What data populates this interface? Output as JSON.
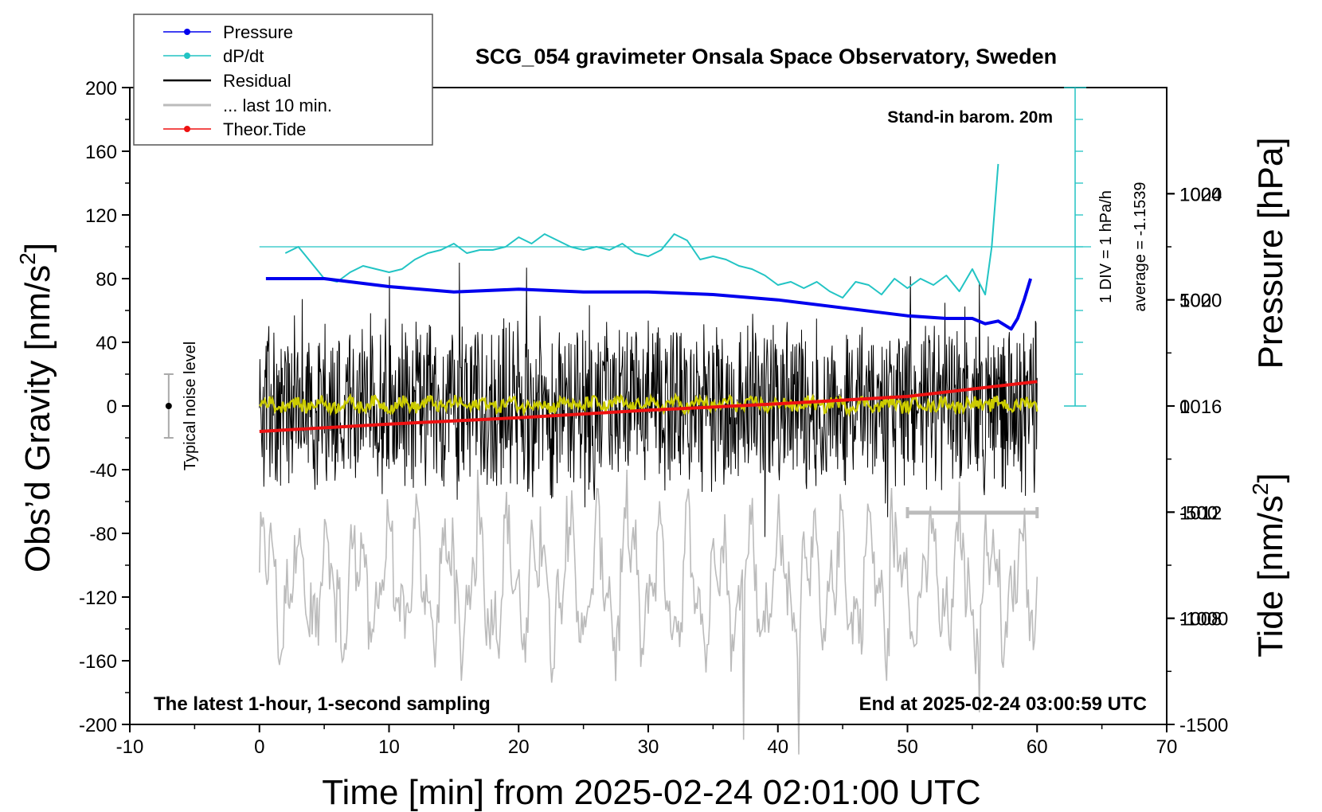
{
  "chart_data": {
    "type": "line",
    "title": "SCG_054 gravimeter Onsala Space Observatory, Sweden",
    "xlabel": "Time [min] from 2025-02-24 02:01:00 UTC",
    "ylabel_left": "Obs’d Gravity [nm/s",
    "ylabel_right_top": "Pressure [hPa]",
    "ylabel_right_bottom": "Tide [nm/s",
    "superscript": "2",
    "closing_bracket": "]",
    "xlim": [
      -10,
      70
    ],
    "ylim_left": [
      -200,
      200
    ],
    "pressure_lim": [
      1004,
      1028
    ],
    "tide_lim": [
      -1500,
      1500
    ],
    "x_ticks": [
      "-10",
      "0",
      "10",
      "20",
      "30",
      "40",
      "50",
      "60",
      "70"
    ],
    "y_ticks_left": [
      "200",
      "160",
      "120",
      "80",
      "40",
      "0",
      "-40",
      "-80",
      "-120",
      "-160",
      "-200"
    ],
    "pressure_ticks": [
      "1024",
      "1020",
      "1016",
      "1012",
      "1008"
    ],
    "tide_ticks": [
      "1000",
      "500",
      "0",
      "-500",
      "-1000",
      "-1500"
    ],
    "legend": [
      "Pressure",
      "dP/dt",
      "Residual",
      "... last 10 min.",
      "Theor.Tide"
    ],
    "annotations": {
      "stand_in": "Stand-in barom. 20m",
      "div": "1 DIV = 1 hPa/h",
      "average": "average = -1.1539",
      "noise": "Typical noise level",
      "bottom_left": "The latest 1-hour, 1-second sampling",
      "bottom_right": "End at 2025-02-24 03:00:59 UTC"
    },
    "colors": {
      "pressure": "#0000ee",
      "dpdt": "#22c4c4",
      "residual": "#000000",
      "last10": "#bbbbbb",
      "tide": "#ee1111",
      "filtered": "#cccc00"
    },
    "series": [
      {
        "name": "Pressure",
        "axis": "pressure_hPa",
        "x": [
          0.5,
          5,
          10,
          15,
          20,
          25,
          30,
          35,
          40,
          45,
          50,
          53,
          55,
          56,
          57,
          58,
          58.5,
          59,
          59.5
        ],
        "values": [
          1020.8,
          1020.8,
          1020.5,
          1020.3,
          1020.4,
          1020.3,
          1020.3,
          1020.2,
          1020.0,
          1019.7,
          1019.4,
          1019.3,
          1019.3,
          1019.1,
          1019.2,
          1018.9,
          1019.3,
          1020.0,
          1020.8
        ]
      },
      {
        "name": "dP/dt",
        "axis": "dpdt_hPa_per_h_offset",
        "x": [
          2,
          3,
          4,
          5,
          6,
          7,
          8,
          9,
          10,
          11,
          12,
          13,
          14,
          15,
          16,
          17,
          18,
          19,
          20,
          21,
          22,
          23,
          24,
          25,
          26,
          27,
          28,
          29,
          30,
          31,
          32,
          33,
          34,
          35,
          36,
          37,
          38,
          39,
          40,
          41,
          42,
          43,
          44,
          45,
          46,
          47,
          48,
          49,
          50,
          51,
          52,
          53,
          54,
          55,
          56,
          56.5,
          57
        ],
        "values": [
          -0.2,
          0.0,
          -0.5,
          -1.0,
          -1.1,
          -0.8,
          -0.6,
          -0.7,
          -0.8,
          -0.7,
          -0.4,
          -0.2,
          -0.1,
          0.1,
          -0.2,
          -0.1,
          -0.1,
          0.0,
          0.3,
          0.1,
          0.4,
          0.2,
          0.0,
          -0.1,
          0.0,
          -0.1,
          0.1,
          -0.2,
          -0.3,
          -0.1,
          0.4,
          0.2,
          -0.4,
          -0.3,
          -0.4,
          -0.6,
          -0.7,
          -0.9,
          -1.2,
          -1.1,
          -1.3,
          -1.1,
          -1.4,
          -1.6,
          -1.1,
          -1.2,
          -1.5,
          -1.0,
          -1.3,
          -1.0,
          -1.2,
          -0.9,
          -1.4,
          -0.7,
          -1.5,
          0.0,
          2.6
        ]
      },
      {
        "name": "Theor.Tide",
        "axis": "tide_nm_s2",
        "x": [
          0,
          10,
          20,
          30,
          40,
          50,
          60
        ],
        "values": [
          -120,
          -85,
          -55,
          -20,
          10,
          45,
          115
        ]
      },
      {
        "name": "Residual",
        "axis": "gravity_nm_s2",
        "x_range": [
          0,
          60
        ],
        "amplitude_approx": 60,
        "values": [
          0,
          55,
          -45,
          30,
          -60,
          40,
          -20,
          50,
          -35,
          25
        ]
      },
      {
        "name": "... last 10 min.",
        "axis": "gravity_nm_s2",
        "x_range": [
          50,
          60
        ],
        "amplitude_approx": 60,
        "values": [
          -90,
          -80,
          -70,
          -100,
          -60,
          -40,
          -110,
          -75
        ]
      },
      {
        "name": "Typical noise level",
        "x": -7,
        "center": 0,
        "halfwidth": 20
      },
      {
        "name": "last 10 min bar",
        "x": [
          50,
          60
        ],
        "y": -67
      }
    ]
  }
}
